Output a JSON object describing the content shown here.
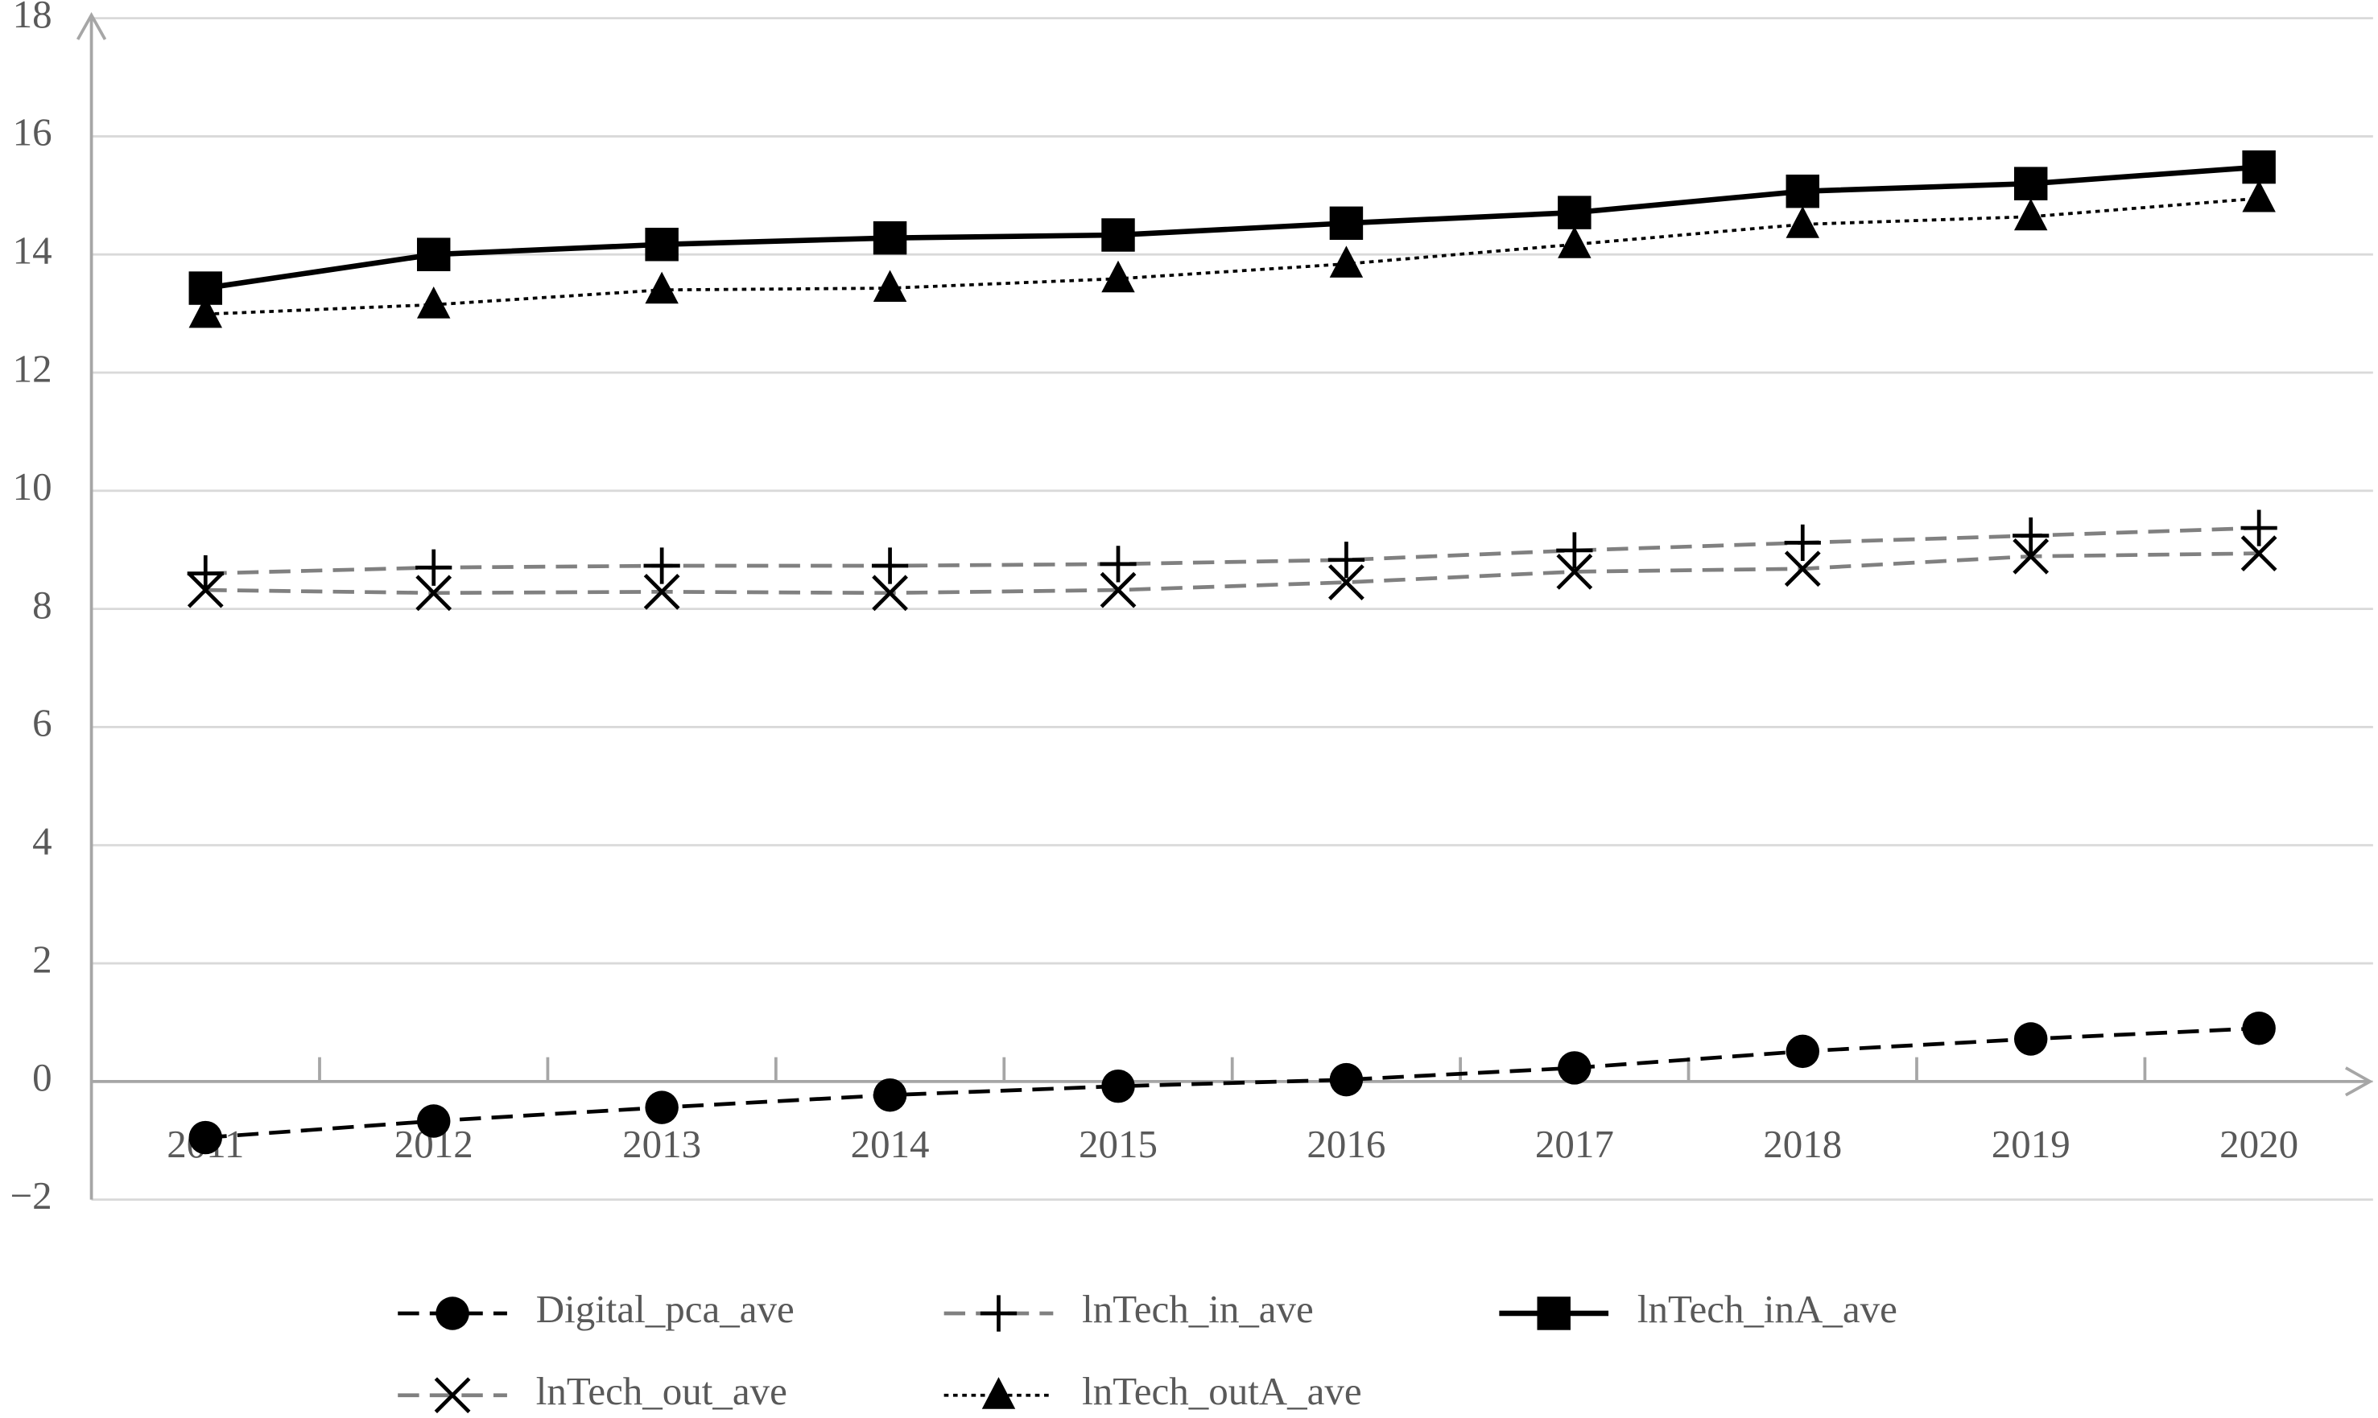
{
  "chart_data": {
    "type": "line",
    "categories": [
      "2011",
      "2012",
      "2013",
      "2014",
      "2015",
      "2016",
      "2017",
      "2018",
      "2019",
      "2020"
    ],
    "series": [
      {
        "name": "Digital_pca_ave",
        "color": "#000000",
        "line_style": "dashed",
        "marker": "circle",
        "values": [
          -0.95,
          -0.67,
          -0.44,
          -0.23,
          -0.08,
          0.03,
          0.23,
          0.51,
          0.72,
          0.9
        ]
      },
      {
        "name": "lnTech_in_ave",
        "color": "#808080",
        "line_style": "dashed",
        "marker": "plus",
        "values": [
          8.6,
          8.7,
          8.73,
          8.73,
          8.76,
          8.83,
          8.99,
          9.12,
          9.24,
          9.37
        ]
      },
      {
        "name": "lnTech_inA_ave",
        "color": "#000000",
        "line_style": "solid",
        "marker": "square",
        "values": [
          13.43,
          14.0,
          14.17,
          14.28,
          14.33,
          14.53,
          14.71,
          15.07,
          15.2,
          15.48
        ]
      },
      {
        "name": "lnTech_out_ave",
        "color": "#808080",
        "line_style": "dashed",
        "marker": "x",
        "values": [
          8.32,
          8.27,
          8.29,
          8.27,
          8.32,
          8.45,
          8.63,
          8.68,
          8.89,
          8.94
        ]
      },
      {
        "name": "lnTech_outA_ave",
        "color": "#000000",
        "line_style": "dotted",
        "marker": "triangle",
        "values": [
          12.99,
          13.15,
          13.4,
          13.43,
          13.59,
          13.84,
          14.17,
          14.51,
          14.64,
          14.95
        ]
      }
    ],
    "ylim": [
      -2,
      18
    ],
    "yticks": [
      {
        "value": -2,
        "label": "−2"
      },
      0,
      2,
      4,
      6,
      8,
      10,
      12,
      14,
      16,
      18
    ],
    "grid": true,
    "legend": "bottom"
  }
}
